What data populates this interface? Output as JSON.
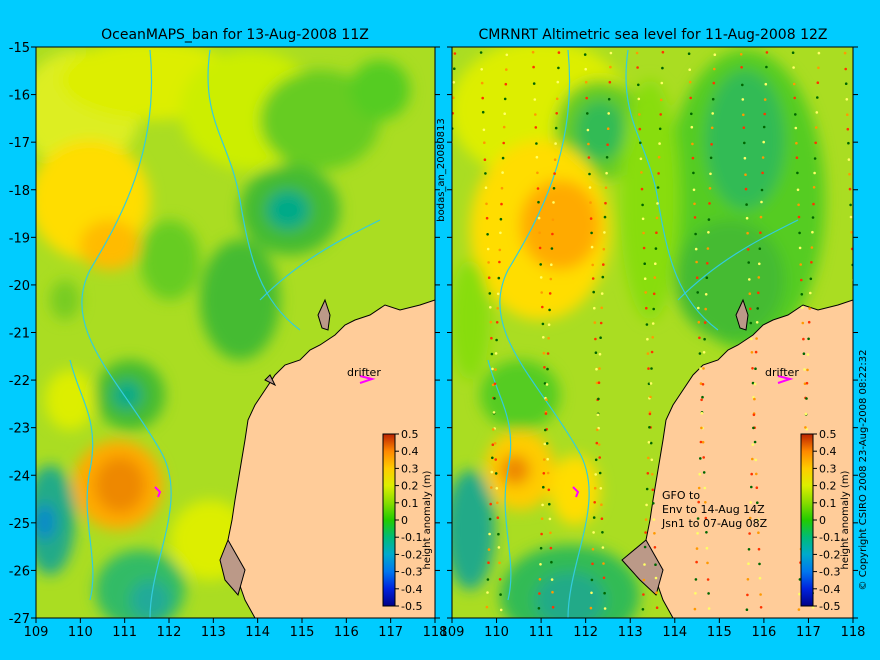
{
  "chart_data": [
    {
      "type": "heatmap",
      "title": "OceanMAPS_ban for 13-Aug-2008 11Z",
      "x_ticks": [
        109,
        110,
        111,
        112,
        113,
        114,
        115,
        116,
        117,
        118
      ],
      "y_ticks": [
        -15,
        -16,
        -17,
        -18,
        -19,
        -20,
        -21,
        -22,
        -23,
        -24,
        -25,
        -26,
        -27
      ],
      "xlim": [
        109,
        118
      ],
      "ylim": [
        -27,
        -15
      ],
      "annotation": "drifter",
      "colorbar": {
        "label": "height anomaly (m)",
        "ticks": [
          0.5,
          0.4,
          0.3,
          0.2,
          0.1,
          0,
          -0.1,
          -0.2,
          -0.3,
          -0.4,
          -0.5
        ]
      }
    },
    {
      "type": "heatmap",
      "title": "CMRNRT Altimetric sea level  for 11-Aug-2008 12Z",
      "x_ticks": [
        109,
        110,
        111,
        112,
        113,
        114,
        115,
        116,
        117,
        118
      ],
      "y_ticks": [
        -15,
        -16,
        -17,
        -18,
        -19,
        -20,
        -21,
        -22,
        -23,
        -24,
        -25,
        -26,
        -27
      ],
      "xlim": [
        109,
        118
      ],
      "ylim": [
        -27,
        -15
      ],
      "annotation": "drifter",
      "notes": [
        "GFO to",
        "Env to 14-Aug 14Z",
        "Jsn1 to 07-Aug 08Z"
      ],
      "colorbar": {
        "label": "height anomaly (m)",
        "ticks": [
          0.5,
          0.4,
          0.3,
          0.2,
          0.1,
          0,
          -0.1,
          -0.2,
          -0.3,
          -0.4,
          -0.5
        ]
      }
    }
  ],
  "side_label": "bodas_an_20080813",
  "copyright": "© Copyright CSIRO 2008   23-Aug-2008 08:22:32",
  "colors": {
    "background": "#00ccff",
    "land": "#ffcc99",
    "coast": "#bb9988",
    "ramp": [
      "#000088",
      "#0044ff",
      "#00aaaa",
      "#00bb44",
      "#33cc00",
      "#99dd00",
      "#ddee00",
      "#ffcc00",
      "#ff9900",
      "#ee5500",
      "#bb2200"
    ]
  }
}
